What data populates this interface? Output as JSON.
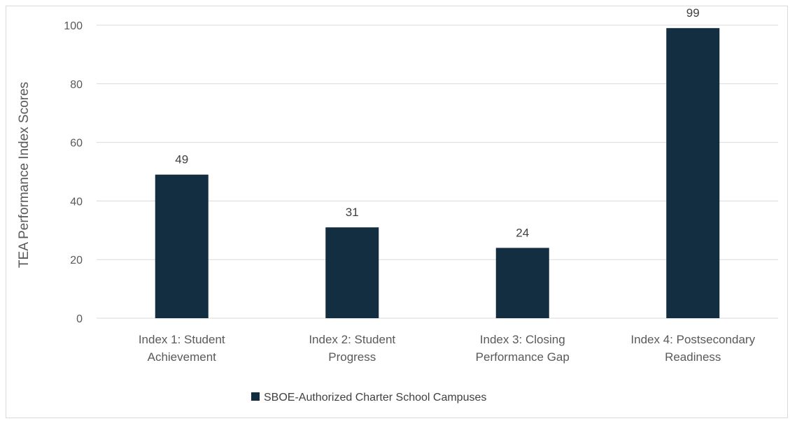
{
  "chart_data": {
    "type": "bar",
    "categories": [
      [
        "Index 1: Student",
        "Achievement"
      ],
      [
        "Index 2: Student",
        "Progress"
      ],
      [
        "Index 3: Closing",
        "Performance Gap"
      ],
      [
        "Index 4: Postsecondary",
        "Readiness"
      ]
    ],
    "series": [
      {
        "name": "SBOE-Authorized Charter School Campuses",
        "values": [
          49,
          31,
          24,
          99
        ]
      }
    ],
    "data_labels": [
      "49",
      "31",
      "24",
      "99"
    ],
    "ylabel": "TEA Performance Index Scores",
    "xlabel": "",
    "ylim": [
      0,
      100
    ],
    "yticks": [
      0,
      20,
      40,
      60,
      80,
      100
    ],
    "grid": true,
    "legend_position": "bottom",
    "colors": {
      "bar": "#132d41",
      "grid": "#d9d9d9",
      "axis": "#d9d9d9",
      "text": "#595959"
    }
  }
}
